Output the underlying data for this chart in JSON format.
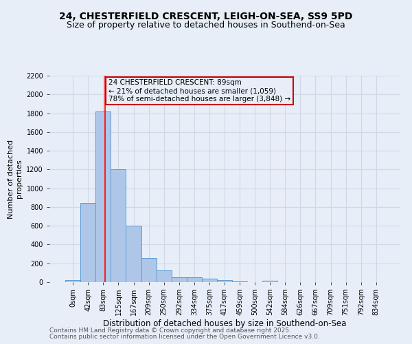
{
  "title1": "24, CHESTERFIELD CRESCENT, LEIGH-ON-SEA, SS9 5PD",
  "title2": "Size of property relative to detached houses in Southend-on-Sea",
  "xlabel": "Distribution of detached houses by size in Southend-on-Sea",
  "ylabel": "Number of detached\nproperties",
  "bar_labels": [
    "0sqm",
    "42sqm",
    "83sqm",
    "125sqm",
    "167sqm",
    "209sqm",
    "250sqm",
    "292sqm",
    "334sqm",
    "375sqm",
    "417sqm",
    "459sqm",
    "500sqm",
    "542sqm",
    "584sqm",
    "626sqm",
    "667sqm",
    "709sqm",
    "751sqm",
    "792sqm",
    "834sqm"
  ],
  "bar_heights": [
    25,
    840,
    1820,
    1200,
    600,
    255,
    125,
    55,
    50,
    35,
    20,
    10,
    0,
    15,
    0,
    0,
    0,
    0,
    0,
    0,
    0
  ],
  "bar_color": "#aec6e8",
  "bar_edge_color": "#5b9bd5",
  "grid_color": "#d0d8e8",
  "background_color": "#e8eef8",
  "red_line_x": 2.14,
  "annotation_text": "24 CHESTERFIELD CRESCENT: 89sqm\n← 21% of detached houses are smaller (1,059)\n78% of semi-detached houses are larger (3,848) →",
  "annotation_box_color": "#cc0000",
  "ylim": [
    0,
    2200
  ],
  "yticks": [
    0,
    200,
    400,
    600,
    800,
    1000,
    1200,
    1400,
    1600,
    1800,
    2000,
    2200
  ],
  "footnote1": "Contains HM Land Registry data © Crown copyright and database right 2025.",
  "footnote2": "Contains public sector information licensed under the Open Government Licence v3.0.",
  "title1_fontsize": 10,
  "title2_fontsize": 9,
  "xlabel_fontsize": 8.5,
  "ylabel_fontsize": 8,
  "tick_fontsize": 7,
  "annotation_fontsize": 7.5,
  "footnote_fontsize": 6.5
}
